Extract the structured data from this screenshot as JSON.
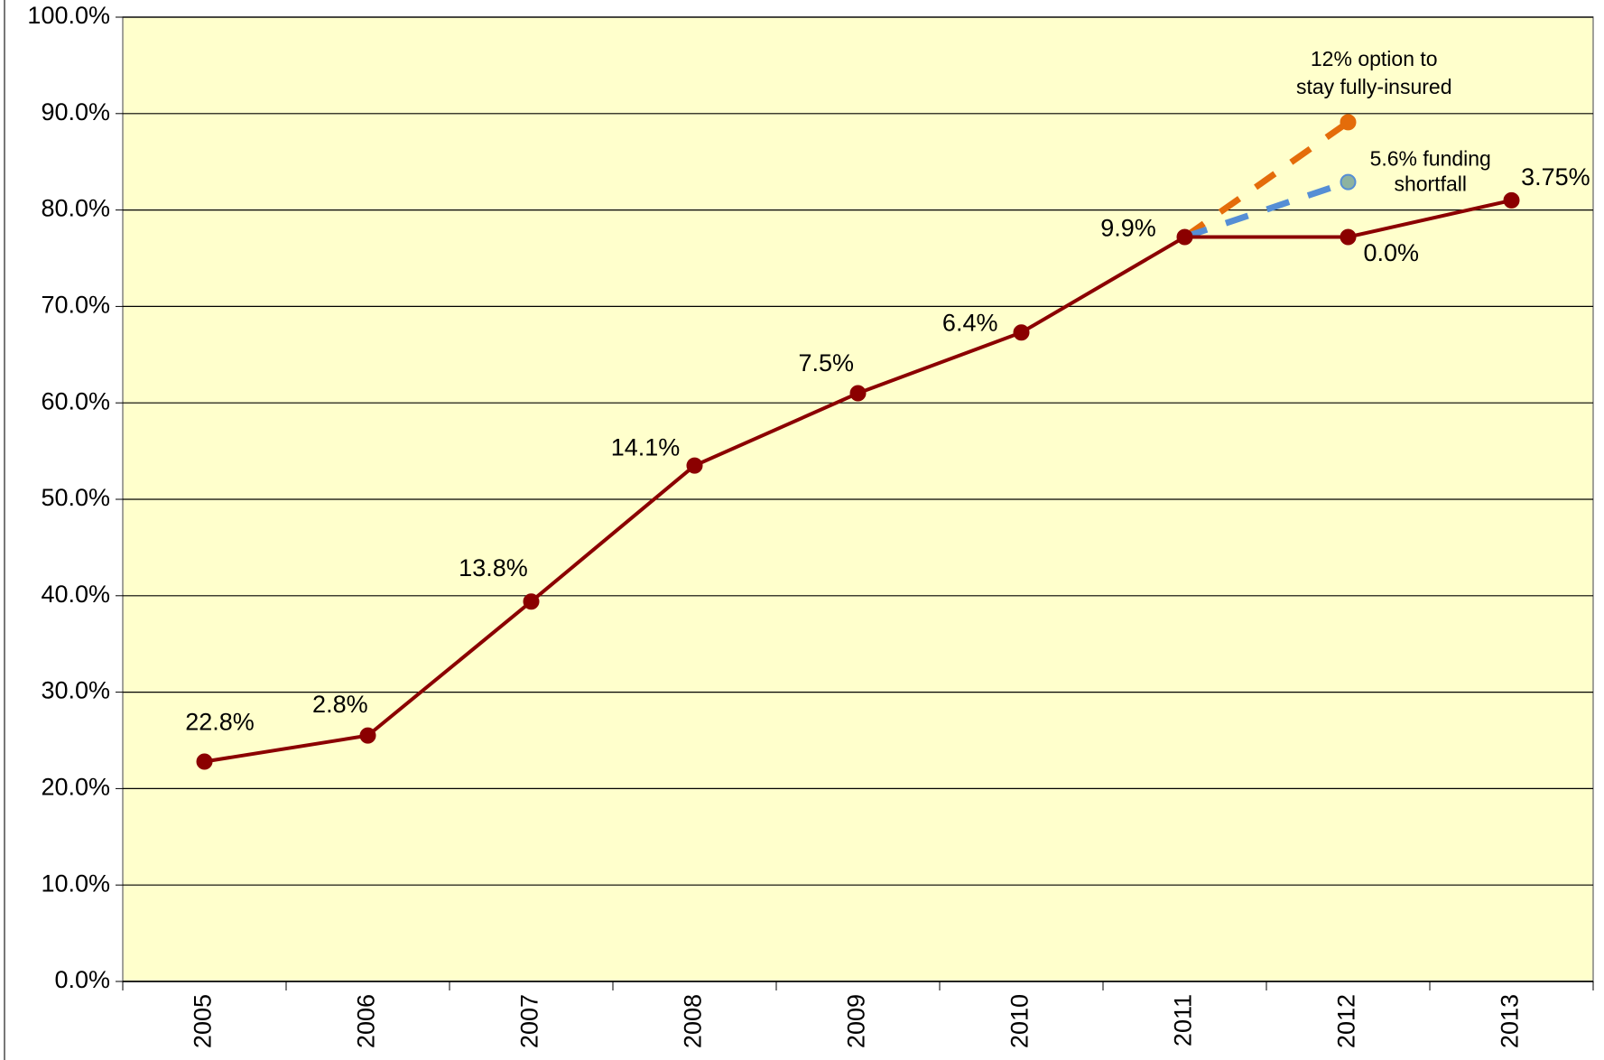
{
  "chart_data": {
    "type": "line",
    "categories": [
      "2005",
      "2006",
      "2007",
      "2008",
      "2009",
      "2010",
      "2011",
      "2012",
      "2013"
    ],
    "series": [
      {
        "color": "#8B0000",
        "values": [
          22.8,
          25.5,
          39.4,
          53.5,
          61.0,
          67.3,
          77.2,
          77.2,
          81.0
        ],
        "point_labels": [
          "22.8%",
          "2.8%",
          "13.8%",
          "14.1%",
          "7.5%",
          "6.4%",
          "9.9%",
          "0.0%",
          "3.75%"
        ]
      },
      {
        "color": "#E46C0A",
        "dashed": true,
        "values": [
          null,
          null,
          null,
          null,
          null,
          null,
          77.2,
          89.1,
          null
        ]
      },
      {
        "color": "#558ED5",
        "dashed": true,
        "values": [
          null,
          null,
          null,
          null,
          null,
          null,
          77.2,
          82.9,
          null
        ]
      }
    ],
    "annotations": [
      [
        "12% option to",
        "stay fully-insured"
      ],
      [
        "5.6% funding",
        "shortfall"
      ]
    ],
    "ylim": [
      0,
      100
    ],
    "yticks": [
      {
        "value": 0,
        "label": "0.0%"
      },
      {
        "value": 10,
        "label": "10.0%"
      },
      {
        "value": 20,
        "label": "20.0%"
      },
      {
        "value": 30,
        "label": "30.0%"
      },
      {
        "value": 40,
        "label": "40.0%"
      },
      {
        "value": 50,
        "label": "50.0%"
      },
      {
        "value": 60,
        "label": "60.0%"
      },
      {
        "value": 70,
        "label": "70.0%"
      },
      {
        "value": 80,
        "label": "80.0%"
      },
      {
        "value": 90,
        "label": "90.0%"
      },
      {
        "value": 100,
        "label": "100.0%"
      }
    ],
    "grid": true,
    "background": "#FFFFCC"
  }
}
